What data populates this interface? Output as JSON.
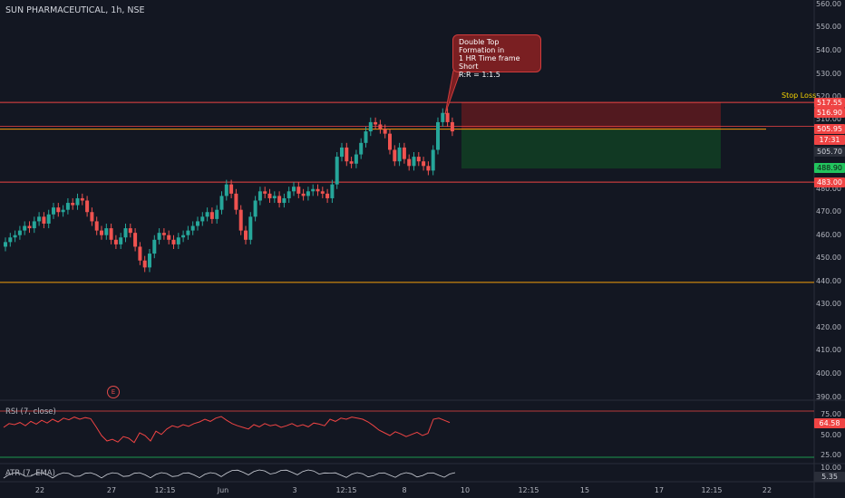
{
  "header": {
    "title": "SUN PHARMACEUTICAL, 1h, NSE"
  },
  "colors": {
    "background": "#131722",
    "up": "#26a69a",
    "down": "#ef5350",
    "red_line": "#ef4444",
    "orange_line": "#f59e0b",
    "stop_zone": "#5e1a1f",
    "target_zone": "#123d24"
  },
  "price_axis": {
    "ticks": [
      "560.00",
      "550.00",
      "540.00",
      "530.00",
      "520.00",
      "510.00",
      "480.00",
      "470.00",
      "460.00",
      "450.00",
      "440.00",
      "430.00",
      "420.00",
      "410.00",
      "400.00",
      "390.00"
    ],
    "boxes": {
      "stop": "517.55",
      "high": "516.90",
      "entry": "505.95",
      "countdown": "17:31",
      "current": "505.70",
      "target": "488.90",
      "support": "483.00"
    }
  },
  "rsi_axis": {
    "ticks": [
      "75.00",
      "50.00",
      "25.00"
    ],
    "value": "64.58"
  },
  "atr_axis": {
    "ticks": [
      "10.00"
    ],
    "value": "5.35"
  },
  "time_axis": {
    "labels": [
      "22",
      "27",
      "12:15",
      "Jun",
      "3",
      "12:15",
      "8",
      "10",
      "12:15",
      "15",
      "17",
      "12:15",
      "22"
    ]
  },
  "annotation": {
    "lines": [
      "Double Top Formation in",
      "1 HR Time frame",
      "Short",
      "R:R = 1:1.5"
    ]
  },
  "stop_loss_label": "Stop Loss",
  "indicators": {
    "rsi_label": "RSI (7, close)",
    "atr_label": "ATR (7, EMA)"
  },
  "event_marker": "E"
}
